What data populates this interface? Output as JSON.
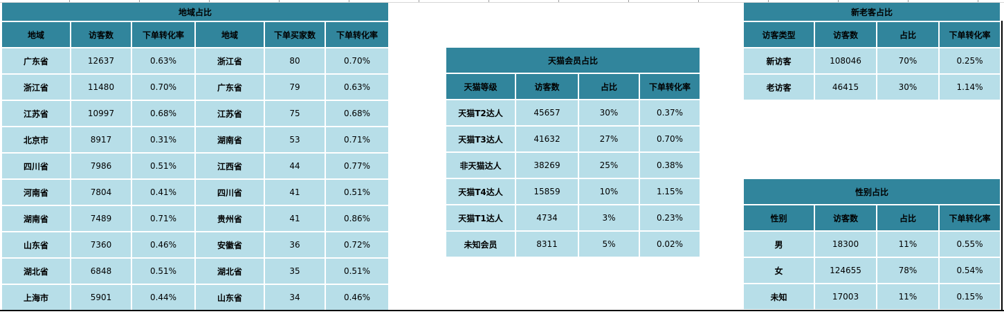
{
  "colors": {
    "header_bg": "#31859C",
    "cell_bg": "#B7DEE8",
    "text": "#000000",
    "separator": "#FFFFFF",
    "page_border": "#000000"
  },
  "tables": {
    "region": {
      "title": "地域占比",
      "headers": [
        "地域",
        "访客数",
        "下单转化率",
        "地域",
        "下单买家数",
        "下单转化率"
      ],
      "rows": [
        [
          "广东省",
          "12637",
          "0.63%",
          "浙江省",
          "80",
          "0.70%"
        ],
        [
          "浙江省",
          "11480",
          "0.70%",
          "广东省",
          "79",
          "0.63%"
        ],
        [
          "江苏省",
          "10997",
          "0.68%",
          "江苏省",
          "75",
          "0.68%"
        ],
        [
          "北京市",
          "8917",
          "0.31%",
          "湖南省",
          "53",
          "0.71%"
        ],
        [
          "四川省",
          "7986",
          "0.51%",
          "江西省",
          "44",
          "0.77%"
        ],
        [
          "河南省",
          "7804",
          "0.41%",
          "四川省",
          "41",
          "0.51%"
        ],
        [
          "湖南省",
          "7489",
          "0.71%",
          "贵州省",
          "41",
          "0.86%"
        ],
        [
          "山东省",
          "7360",
          "0.46%",
          "安徽省",
          "36",
          "0.72%"
        ],
        [
          "湖北省",
          "6848",
          "0.51%",
          "湖北省",
          "35",
          "0.51%"
        ],
        [
          "上海市",
          "5901",
          "0.44%",
          "山东省",
          "34",
          "0.46%"
        ]
      ]
    },
    "tmall": {
      "title": "天猫会员占比",
      "headers": [
        "天猫等级",
        "访客数",
        "占比",
        "下单转化率"
      ],
      "rows": [
        [
          "天猫T2达人",
          "45657",
          "30%",
          "0.37%"
        ],
        [
          "天猫T3达人",
          "41632",
          "27%",
          "0.70%"
        ],
        [
          "非天猫达人",
          "38269",
          "25%",
          "0.38%"
        ],
        [
          "天猫T4达人",
          "15859",
          "10%",
          "1.15%"
        ],
        [
          "天猫T1达人",
          "4734",
          "3%",
          "0.23%"
        ],
        [
          "未知会员",
          "8311",
          "5%",
          "0.02%"
        ]
      ]
    },
    "visitor_type": {
      "title": "新老客占比",
      "headers": [
        "访客类型",
        "访客数",
        "占比",
        "下单转化率"
      ],
      "rows": [
        [
          "新访客",
          "108046",
          "70%",
          "0.25%"
        ],
        [
          "老访客",
          "46415",
          "30%",
          "1.14%"
        ]
      ]
    },
    "gender": {
      "title": "性别占比",
      "headers": [
        "性别",
        "访客数",
        "占比",
        "下单转化率"
      ],
      "rows": [
        [
          "男",
          "18300",
          "11%",
          "0.55%"
        ],
        [
          "女",
          "124655",
          "78%",
          "0.54%"
        ],
        [
          "未知",
          "17003",
          "11%",
          "0.15%"
        ]
      ]
    }
  }
}
